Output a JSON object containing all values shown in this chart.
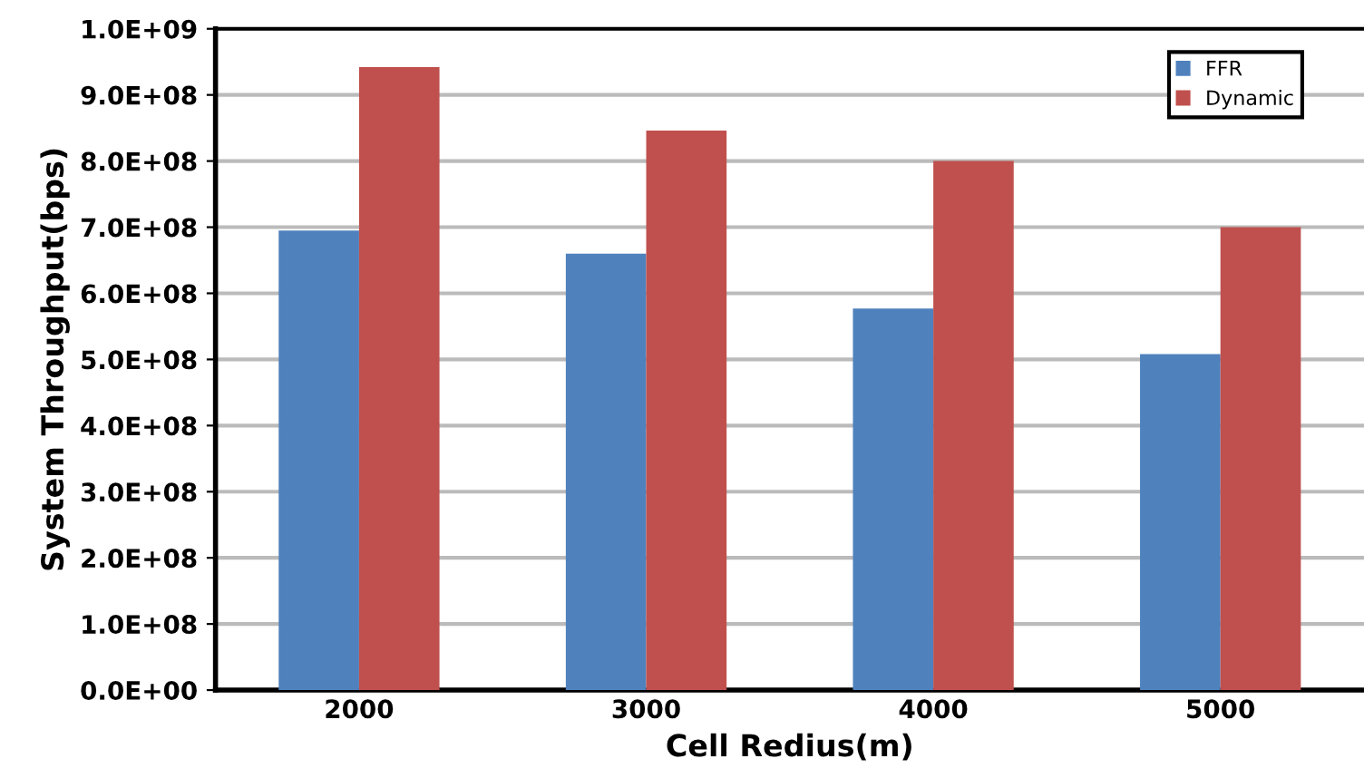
{
  "chart_data": {
    "type": "bar",
    "xlabel": "Cell Redius(m)",
    "ylabel": "System Throughput(bps)",
    "categories": [
      "2000",
      "3000",
      "4000",
      "5000"
    ],
    "series": [
      {
        "name": "FFR",
        "color": "#4f81bd",
        "values": [
          695000000,
          660000000,
          577000000,
          508000000
        ]
      },
      {
        "name": "Dynamic",
        "color": "#c0504d",
        "values": [
          942000000,
          846000000,
          800000000,
          700000000
        ]
      }
    ],
    "ylim": [
      0,
      1000000000
    ],
    "yticks": [
      {
        "value": 0,
        "label": "0.0E+00"
      },
      {
        "value": 100000000,
        "label": "1.0E+08"
      },
      {
        "value": 200000000,
        "label": "2.0E+08"
      },
      {
        "value": 300000000,
        "label": "3.0E+08"
      },
      {
        "value": 400000000,
        "label": "4.0E+08"
      },
      {
        "value": 500000000,
        "label": "5.0E+08"
      },
      {
        "value": 600000000,
        "label": "6.0E+08"
      },
      {
        "value": 700000000,
        "label": "7.0E+08"
      },
      {
        "value": 800000000,
        "label": "8.0E+08"
      },
      {
        "value": 900000000,
        "label": "9.0E+08"
      },
      {
        "value": 1000000000,
        "label": "1.0E+09"
      }
    ],
    "grid": "y",
    "legend": "top right"
  }
}
